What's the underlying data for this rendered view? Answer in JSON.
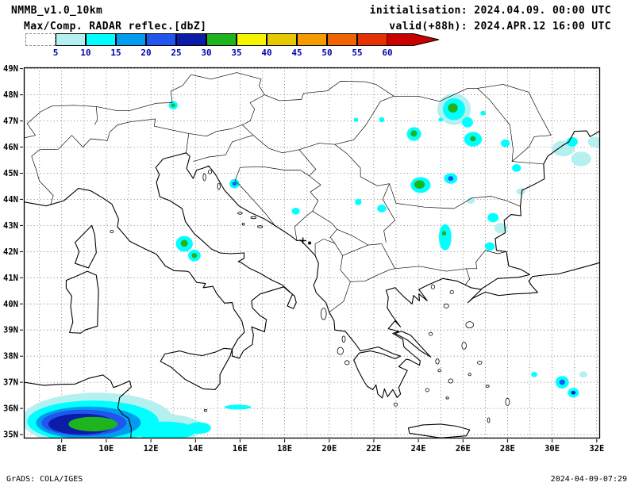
{
  "header": {
    "model": "NMMB_v1.0_10km",
    "init_label": "initialisation: 2024.04.09. 00:00 UTC",
    "field_label": "Max/Comp. RADAR reflec.[dbZ]",
    "valid_label": "valid(+88h): 2024.APR.12 16:00 UTC"
  },
  "footer": {
    "left": "GrADS: COLA/IGES",
    "right": "2024-04-09-07:29"
  },
  "chart_data": {
    "type": "map-shaded-contour",
    "variable": "Maximum composite radar reflectivity",
    "units": "dbZ",
    "domain": {
      "lon_min": 6.3,
      "lon_max": 32.15,
      "lat_min": 34.85,
      "lat_max": 49.05
    },
    "grid_interval_deg": 1,
    "lat_ticks": [
      {
        "v": 49,
        "t": "49N"
      },
      {
        "v": 48,
        "t": "48N"
      },
      {
        "v": 47,
        "t": "47N"
      },
      {
        "v": 46,
        "t": "46N"
      },
      {
        "v": 45,
        "t": "45N"
      },
      {
        "v": 44,
        "t": "44N"
      },
      {
        "v": 43,
        "t": "43N"
      },
      {
        "v": 42,
        "t": "42N"
      },
      {
        "v": 41,
        "t": "41N"
      },
      {
        "v": 40,
        "t": "40N"
      },
      {
        "v": 39,
        "t": "39N"
      },
      {
        "v": 38,
        "t": "38N"
      },
      {
        "v": 37,
        "t": "37N"
      },
      {
        "v": 36,
        "t": "36N"
      },
      {
        "v": 35,
        "t": "35N"
      }
    ],
    "lon_ticks": [
      {
        "v": 8,
        "t": "8E"
      },
      {
        "v": 10,
        "t": "10E"
      },
      {
        "v": 12,
        "t": "12E"
      },
      {
        "v": 14,
        "t": "14E"
      },
      {
        "v": 16,
        "t": "16E"
      },
      {
        "v": 18,
        "t": "18E"
      },
      {
        "v": 20,
        "t": "20E"
      },
      {
        "v": 22,
        "t": "22E"
      },
      {
        "v": 24,
        "t": "24E"
      },
      {
        "v": 26,
        "t": "26E"
      },
      {
        "v": 28,
        "t": "28E"
      },
      {
        "v": 30,
        "t": "30E"
      },
      {
        "v": 32,
        "t": "32E"
      }
    ],
    "palette": {
      "levels": [
        5,
        10,
        15,
        20,
        25,
        30,
        35,
        40,
        45,
        50,
        55,
        60
      ],
      "colors": [
        "#ffffff",
        "#b4f0f0",
        "#00ffff",
        "#009cf0",
        "#2255ee",
        "#0a1ca8",
        "#1eb41e",
        "#f5f500",
        "#e6c800",
        "#f59b00",
        "#f06400",
        "#e63200"
      ],
      "arrow_color": "#c80000",
      "label_color": "#0000b4",
      "band_meaning": "color[i] covers dbZ below levels[i]; arrow = above 60"
    },
    "cell_format": "[lon_deg_E, lat_deg_N, rx_deg, ry_deg, palette_color_index]",
    "cells": [
      [
        9.6,
        35.55,
        3.4,
        1.05,
        1
      ],
      [
        12.3,
        35.25,
        2.1,
        0.55,
        1
      ],
      [
        9.4,
        35.5,
        2.95,
        0.8,
        2
      ],
      [
        12.6,
        35.15,
        1.45,
        0.35,
        2
      ],
      [
        9.2,
        35.45,
        2.35,
        0.62,
        3
      ],
      [
        9.0,
        35.45,
        1.9,
        0.5,
        4
      ],
      [
        8.9,
        35.4,
        1.5,
        0.4,
        5
      ],
      [
        9.4,
        35.4,
        1.1,
        0.28,
        6
      ],
      [
        14.15,
        35.25,
        0.55,
        0.22,
        2
      ],
      [
        15.9,
        36.05,
        0.6,
        0.09,
        2
      ],
      [
        13.5,
        42.3,
        0.38,
        0.3,
        2
      ],
      [
        13.5,
        42.32,
        0.16,
        0.13,
        6
      ],
      [
        13.95,
        41.85,
        0.28,
        0.22,
        2
      ],
      [
        13.95,
        41.85,
        0.12,
        0.1,
        6
      ],
      [
        15.75,
        44.6,
        0.22,
        0.18,
        2
      ],
      [
        15.75,
        44.6,
        0.1,
        0.08,
        4
      ],
      [
        18.5,
        43.55,
        0.18,
        0.13,
        2
      ],
      [
        13.0,
        47.6,
        0.2,
        0.16,
        2
      ],
      [
        13.0,
        47.6,
        0.09,
        0.07,
        6
      ],
      [
        21.3,
        43.9,
        0.15,
        0.12,
        2
      ],
      [
        22.35,
        43.65,
        0.2,
        0.15,
        2
      ],
      [
        25.2,
        42.55,
        0.28,
        0.5,
        2
      ],
      [
        25.15,
        42.7,
        0.1,
        0.09,
        6
      ],
      [
        27.2,
        42.2,
        0.22,
        0.16,
        2
      ],
      [
        27.35,
        43.3,
        0.25,
        0.18,
        2
      ],
      [
        27.7,
        42.9,
        0.28,
        0.2,
        1
      ],
      [
        25.6,
        47.45,
        0.75,
        0.6,
        1
      ],
      [
        25.6,
        47.45,
        0.5,
        0.42,
        2
      ],
      [
        25.55,
        47.5,
        0.22,
        0.18,
        6
      ],
      [
        26.2,
        46.95,
        0.25,
        0.2,
        2
      ],
      [
        23.8,
        46.5,
        0.32,
        0.26,
        2
      ],
      [
        23.8,
        46.52,
        0.15,
        0.12,
        6
      ],
      [
        26.45,
        46.3,
        0.4,
        0.28,
        2
      ],
      [
        26.45,
        46.32,
        0.13,
        0.1,
        6
      ],
      [
        27.9,
        46.15,
        0.2,
        0.15,
        2
      ],
      [
        24.1,
        44.55,
        0.45,
        0.3,
        2
      ],
      [
        24.05,
        44.57,
        0.24,
        0.16,
        6
      ],
      [
        25.45,
        44.8,
        0.3,
        0.2,
        2
      ],
      [
        25.45,
        44.8,
        0.12,
        0.09,
        4
      ],
      [
        26.35,
        43.95,
        0.18,
        0.12,
        1
      ],
      [
        28.4,
        45.2,
        0.2,
        0.15,
        2
      ],
      [
        22.35,
        47.05,
        0.12,
        0.1,
        2
      ],
      [
        25.0,
        47.05,
        0.1,
        0.08,
        2
      ],
      [
        26.9,
        47.3,
        0.12,
        0.09,
        2
      ],
      [
        28.6,
        44.3,
        0.2,
        0.12,
        1
      ],
      [
        30.5,
        45.95,
        0.5,
        0.3,
        1
      ],
      [
        31.3,
        45.55,
        0.45,
        0.28,
        1
      ],
      [
        30.9,
        46.2,
        0.25,
        0.18,
        2
      ],
      [
        31.9,
        46.2,
        0.3,
        0.2,
        1
      ],
      [
        30.45,
        37.0,
        0.3,
        0.24,
        2
      ],
      [
        30.45,
        37.0,
        0.13,
        0.1,
        4
      ],
      [
        30.95,
        36.6,
        0.25,
        0.18,
        2
      ],
      [
        30.95,
        36.6,
        0.1,
        0.07,
        5
      ],
      [
        29.2,
        37.3,
        0.14,
        0.1,
        2
      ],
      [
        31.4,
        37.3,
        0.18,
        0.12,
        1
      ],
      [
        21.2,
        47.05,
        0.1,
        0.08,
        2
      ]
    ],
    "markers": [
      {
        "lon": 18.82,
        "lat": 42.42,
        "symbol": "plus"
      },
      {
        "lon": 19.12,
        "lat": 42.33,
        "symbol": "square"
      }
    ]
  }
}
